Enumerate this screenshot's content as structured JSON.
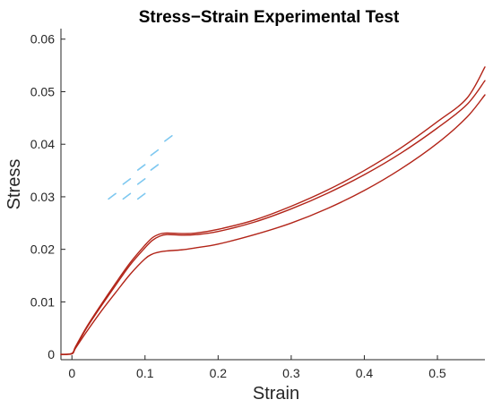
{
  "chart_data": {
    "type": "line",
    "title": "Stress−Strain Experimental Test",
    "xlabel": "Strain",
    "ylabel": "Stress",
    "xlim": [
      -0.015,
      0.565
    ],
    "ylim": [
      -0.001,
      0.062
    ],
    "x_ticks": [
      0,
      0.1,
      0.2,
      0.3,
      0.4,
      0.5
    ],
    "x_tick_labels": [
      "0",
      "0.1",
      "0.2",
      "0.3",
      "0.4",
      "0.5"
    ],
    "y_ticks": [
      0,
      0.01,
      0.02,
      0.03,
      0.04,
      0.05,
      0.06
    ],
    "y_tick_labels": [
      "0",
      "0.01",
      "0.02",
      "0.03",
      "0.04",
      "0.05",
      "0.06"
    ],
    "grid": false,
    "line_color": "#b22418",
    "marker_color": "#7ec8f0",
    "series": [
      {
        "x": [
          -0.015,
          0,
          0.005,
          0.02,
          0.04,
          0.06,
          0.08,
          0.1,
          0.11,
          0.12,
          0.13,
          0.15,
          0.17,
          0.2,
          0.25,
          0.3,
          0.35,
          0.4,
          0.45,
          0.5,
          0.54,
          0.565
        ],
        "y": [
          0,
          0.0002,
          0.0015,
          0.0052,
          0.0095,
          0.0136,
          0.0175,
          0.0208,
          0.0222,
          0.0229,
          0.0231,
          0.023,
          0.0231,
          0.0238,
          0.0256,
          0.0282,
          0.0313,
          0.035,
          0.0393,
          0.0443,
          0.0487,
          0.0547
        ]
      },
      {
        "x": [
          -0.015,
          0,
          0.005,
          0.02,
          0.04,
          0.06,
          0.08,
          0.1,
          0.11,
          0.12,
          0.13,
          0.15,
          0.17,
          0.2,
          0.25,
          0.3,
          0.35,
          0.4,
          0.45,
          0.5,
          0.54,
          0.565
        ],
        "y": [
          0,
          0.0002,
          0.0013,
          0.005,
          0.0092,
          0.0132,
          0.0171,
          0.0203,
          0.0217,
          0.0225,
          0.0228,
          0.0227,
          0.0228,
          0.0234,
          0.0252,
          0.0277,
          0.0307,
          0.0342,
          0.0383,
          0.0431,
          0.0475,
          0.0521
        ]
      },
      {
        "x": [
          -0.015,
          0,
          0.005,
          0.02,
          0.04,
          0.06,
          0.08,
          0.1,
          0.11,
          0.12,
          0.13,
          0.15,
          0.17,
          0.2,
          0.25,
          0.3,
          0.35,
          0.4,
          0.45,
          0.5,
          0.54,
          0.565
        ],
        "y": [
          0,
          0.0001,
          0.0012,
          0.0043,
          0.0082,
          0.0118,
          0.0153,
          0.0182,
          0.0191,
          0.0195,
          0.0197,
          0.0199,
          0.0203,
          0.021,
          0.0228,
          0.025,
          0.0278,
          0.0312,
          0.0353,
          0.0402,
          0.0451,
          0.0494
        ]
      }
    ],
    "markers": [
      {
        "x": 0.055,
        "y": 0.0301
      },
      {
        "x": 0.075,
        "y": 0.0301
      },
      {
        "x": 0.095,
        "y": 0.0301
      },
      {
        "x": 0.075,
        "y": 0.0329
      },
      {
        "x": 0.095,
        "y": 0.0329
      },
      {
        "x": 0.095,
        "y": 0.0356
      },
      {
        "x": 0.113,
        "y": 0.0356
      },
      {
        "x": 0.113,
        "y": 0.0384
      },
      {
        "x": 0.132,
        "y": 0.0411
      }
    ]
  }
}
